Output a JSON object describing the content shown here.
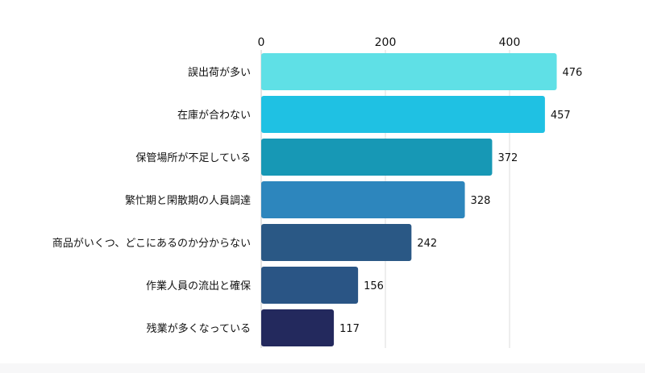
{
  "chart_data": {
    "type": "bar",
    "orientation": "horizontal",
    "categories": [
      "誤出荷が多い",
      "在庫が合わない",
      "保管場所が不足している",
      "繁忙期と閑散期の人員調達",
      "商品がいくつ、どこにあるのか分からない",
      "作業人員の流出と確保",
      "残業が多くなっている"
    ],
    "values": [
      476,
      457,
      372,
      328,
      242,
      156,
      117
    ],
    "bar_colors": [
      "#5fe0e6",
      "#1fc1e3",
      "#1798b5",
      "#2d86bd",
      "#2a5885",
      "#2a5585",
      "#23295d"
    ],
    "xticks": [
      0,
      200,
      400
    ],
    "xlim": [
      0,
      480
    ],
    "axis_position": "top",
    "grid": true
  }
}
